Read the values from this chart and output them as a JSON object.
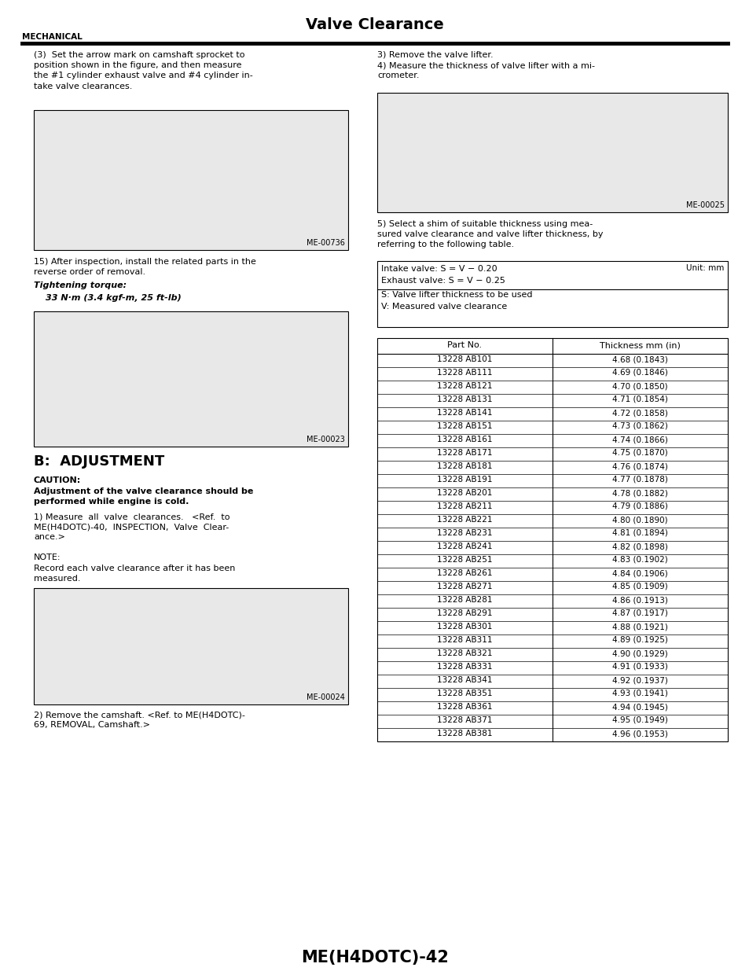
{
  "title": "Valve Clearance",
  "section_label": "MECHANICAL",
  "footer": "ME(H4DOTC)-42",
  "bg_color": "#ffffff",
  "text_color": "#000000",
  "left_column": {
    "para1": "(3)  Set the arrow mark on camshaft sprocket to\nposition shown in the figure, and then measure\nthe #1 cylinder exhaust valve and #4 cylinder in-\ntake valve clearances.",
    "img1_label": "ME-00736",
    "para2": "15) After inspection, install the related parts in the\nreverse order of removal.",
    "tightening_label": "Tightening torque:",
    "tightening_value": "    33 N·m (3.4 kgf-m, 25 ft-lb)",
    "img2_label": "ME-00023",
    "section_header": "B:  ADJUSTMENT",
    "caution_header": "CAUTION:",
    "caution_text": "Adjustment of the valve clearance should be\nperformed while engine is cold.",
    "para3": "1) Measure  all  valve  clearances.   <Ref.  to\nME(H4DOTC)-40,  INSPECTION,  Valve  Clear-\nance.>",
    "note_label": "NOTE:",
    "note_text": "Record each valve clearance after it has been\nmeasured.",
    "img3_label": "ME-00024",
    "para4": "2) Remove the camshaft. <Ref. to ME(H4DOTC)-\n69, REMOVAL, Camshaft.>"
  },
  "right_column": {
    "para1": "3) Remove the valve lifter.\n4) Measure the thickness of valve lifter with a mi-\ncrometer.",
    "img1_label": "ME-00025",
    "para2": "5) Select a shim of suitable thickness using mea-\nsured valve clearance and valve lifter thickness, by\nreferring to the following table.",
    "formula_unit": "Unit: mm",
    "formula_line1": "Intake valve: S = V − 0.20",
    "formula_line2": "Exhaust valve: S = V − 0.25",
    "formula_line3": "S: Valve lifter thickness to be used",
    "formula_line4": "V: Measured valve clearance",
    "table_headers": [
      "Part No.",
      "Thickness mm (in)"
    ],
    "table_rows": [
      [
        "13228 AB101",
        "4.68 (0.1843)"
      ],
      [
        "13228 AB111",
        "4.69 (0.1846)"
      ],
      [
        "13228 AB121",
        "4.70 (0.1850)"
      ],
      [
        "13228 AB131",
        "4.71 (0.1854)"
      ],
      [
        "13228 AB141",
        "4.72 (0.1858)"
      ],
      [
        "13228 AB151",
        "4.73 (0.1862)"
      ],
      [
        "13228 AB161",
        "4.74 (0.1866)"
      ],
      [
        "13228 AB171",
        "4.75 (0.1870)"
      ],
      [
        "13228 AB181",
        "4.76 (0.1874)"
      ],
      [
        "13228 AB191",
        "4.77 (0.1878)"
      ],
      [
        "13228 AB201",
        "4.78 (0.1882)"
      ],
      [
        "13228 AB211",
        "4.79 (0.1886)"
      ],
      [
        "13228 AB221",
        "4.80 (0.1890)"
      ],
      [
        "13228 AB231",
        "4.81 (0.1894)"
      ],
      [
        "13228 AB241",
        "4.82 (0.1898)"
      ],
      [
        "13228 AB251",
        "4.83 (0.1902)"
      ],
      [
        "13228 AB261",
        "4.84 (0.1906)"
      ],
      [
        "13228 AB271",
        "4.85 (0.1909)"
      ],
      [
        "13228 AB281",
        "4.86 (0.1913)"
      ],
      [
        "13228 AB291",
        "4.87 (0.1917)"
      ],
      [
        "13228 AB301",
        "4.88 (0.1921)"
      ],
      [
        "13228 AB311",
        "4.89 (0.1925)"
      ],
      [
        "13228 AB321",
        "4.90 (0.1929)"
      ],
      [
        "13228 AB331",
        "4.91 (0.1933)"
      ],
      [
        "13228 AB341",
        "4.92 (0.1937)"
      ],
      [
        "13228 AB351",
        "4.93 (0.1941)"
      ],
      [
        "13228 AB361",
        "4.94 (0.1945)"
      ],
      [
        "13228 AB371",
        "4.95 (0.1949)"
      ],
      [
        "13228 AB381",
        "4.96 (0.1953)"
      ]
    ]
  }
}
